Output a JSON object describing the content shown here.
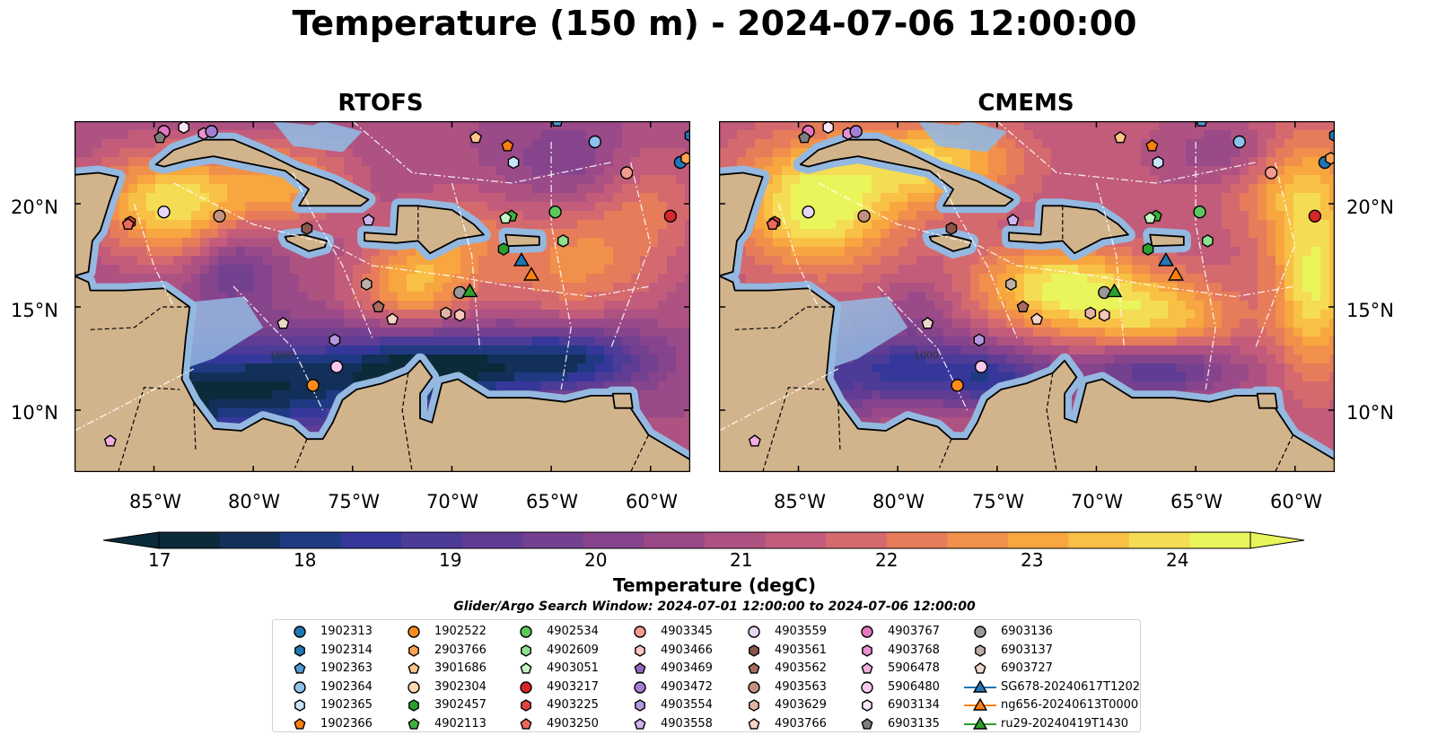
{
  "title": "Temperature (150 m) - 2024-07-06 12:00:00",
  "panels": [
    {
      "title": "RTOFS"
    },
    {
      "title": "CMEMS"
    }
  ],
  "map": {
    "lon_range": [
      -89,
      -58
    ],
    "lat_range": [
      7,
      24
    ],
    "lat_ticks": [
      "20°N",
      "15°N",
      "10°N"
    ],
    "lon_ticks": [
      "85°W",
      "80°W",
      "75°W",
      "70°W",
      "65°W",
      "60°W"
    ],
    "land_color": "#d2b48c",
    "shelf_color": "#94b8e0",
    "contour_labels": [
      "1000",
      "1000"
    ]
  },
  "colorbar": {
    "label": "Temperature (degC)",
    "ticks": [
      "17",
      "18",
      "19",
      "20",
      "21",
      "22",
      "23",
      "24"
    ],
    "range": [
      17,
      24.5
    ],
    "extend": "both",
    "colors": [
      "#0b2a3a",
      "#13305a",
      "#1f3a82",
      "#35389a",
      "#4d3b98",
      "#613c94",
      "#744090",
      "#86448c",
      "#9a4a88",
      "#ae5282",
      "#c25c7a",
      "#d56a6e",
      "#e67c5a",
      "#f1904a",
      "#f7a640",
      "#f9c046",
      "#f5dc55",
      "#e9f55a"
    ]
  },
  "search_window": "Glider/Argo Search Window: 2024-07-01 12:00:00 to 2024-07-06 12:00:00",
  "legend": [
    {
      "label": "1902313",
      "marker": "circle",
      "color": "#1f77b4"
    },
    {
      "label": "1902314",
      "marker": "hexagon",
      "color": "#1f77b4"
    },
    {
      "label": "1902363",
      "marker": "pentagon",
      "color": "#4e9bd6"
    },
    {
      "label": "1902364",
      "marker": "circle",
      "color": "#8cc2ec"
    },
    {
      "label": "1902365",
      "marker": "hexagon",
      "color": "#c8e4fa"
    },
    {
      "label": "1902366",
      "marker": "pentagon",
      "color": "#ff7f0e"
    },
    {
      "label": "1902522",
      "marker": "circle",
      "color": "#ff8c1a"
    },
    {
      "label": "2903766",
      "marker": "hexagon",
      "color": "#ffa351"
    },
    {
      "label": "3901686",
      "marker": "pentagon",
      "color": "#ffc48a"
    },
    {
      "label": "3902304",
      "marker": "circle",
      "color": "#ffd9b3"
    },
    {
      "label": "3902457",
      "marker": "hexagon",
      "color": "#2ca02c"
    },
    {
      "label": "4902113",
      "marker": "pentagon",
      "color": "#3fb13f"
    },
    {
      "label": "4902534",
      "marker": "circle",
      "color": "#5cc85c"
    },
    {
      "label": "4902609",
      "marker": "hexagon",
      "color": "#8fe08f"
    },
    {
      "label": "4903051",
      "marker": "pentagon",
      "color": "#c4f5c4"
    },
    {
      "label": "4903217",
      "marker": "circle",
      "color": "#d62728"
    },
    {
      "label": "4903225",
      "marker": "hexagon",
      "color": "#e0433f"
    },
    {
      "label": "4903250",
      "marker": "pentagon",
      "color": "#eb6a5c"
    },
    {
      "label": "4903345",
      "marker": "circle",
      "color": "#f39a8f"
    },
    {
      "label": "4903466",
      "marker": "hexagon",
      "color": "#fbc4bc"
    },
    {
      "label": "4903469",
      "marker": "pentagon",
      "color": "#9467bd"
    },
    {
      "label": "4903472",
      "marker": "circle",
      "color": "#a27fd0"
    },
    {
      "label": "4903554",
      "marker": "hexagon",
      "color": "#b597e0"
    },
    {
      "label": "4903558",
      "marker": "pentagon",
      "color": "#cdb4ee"
    },
    {
      "label": "4903559",
      "marker": "circle",
      "color": "#e6d6f8"
    },
    {
      "label": "4903561",
      "marker": "hexagon",
      "color": "#8c564b"
    },
    {
      "label": "4903562",
      "marker": "pentagon",
      "color": "#a86c5f"
    },
    {
      "label": "4903563",
      "marker": "circle",
      "color": "#c4907f"
    },
    {
      "label": "4903629",
      "marker": "hexagon",
      "color": "#e0b5a5"
    },
    {
      "label": "4903766",
      "marker": "pentagon",
      "color": "#f5d5c7"
    },
    {
      "label": "4903767",
      "marker": "circle",
      "color": "#e377c2"
    },
    {
      "label": "4903768",
      "marker": "hexagon",
      "color": "#ea8fd0"
    },
    {
      "label": "5906478",
      "marker": "pentagon",
      "color": "#f2aee0"
    },
    {
      "label": "5906480",
      "marker": "circle",
      "color": "#f8c9ec"
    },
    {
      "label": "6903134",
      "marker": "hexagon",
      "color": "#fde6f7"
    },
    {
      "label": "6903135",
      "marker": "pentagon",
      "color": "#7f7f7f"
    },
    {
      "label": "6903136",
      "marker": "circle",
      "color": "#999999"
    },
    {
      "label": "6903137",
      "marker": "hexagon",
      "color": "#c0b0a8"
    },
    {
      "label": "6903727",
      "marker": "pentagon",
      "color": "#eed8cc"
    },
    {
      "label": "SG678-20240617T1202",
      "marker": "triangle",
      "color": "#1f77b4"
    },
    {
      "label": "ng656-20240613T0000",
      "marker": "triangle",
      "color": "#ff7f0e"
    },
    {
      "label": "ru29-20240419T1430",
      "marker": "triangle",
      "color": "#2ca02c"
    }
  ],
  "platforms": [
    {
      "id": "1902313",
      "lon": -58.5,
      "lat": 22.0
    },
    {
      "id": "1902314",
      "lon": -58.0,
      "lat": 23.3
    },
    {
      "id": "1902363",
      "lon": -64.7,
      "lat": 24.0
    },
    {
      "id": "1902364",
      "lon": -62.8,
      "lat": 23.0
    },
    {
      "id": "1902365",
      "lon": -66.9,
      "lat": 22.0
    },
    {
      "id": "1902366",
      "lon": -67.2,
      "lat": 22.8
    },
    {
      "id": "2903766",
      "lon": -58.2,
      "lat": 22.2
    },
    {
      "id": "3901686",
      "lon": -68.8,
      "lat": 23.2
    },
    {
      "id": "1902522",
      "lon": -77.0,
      "lat": 11.2
    },
    {
      "id": "3902457",
      "lon": -67.4,
      "lat": 17.8
    },
    {
      "id": "4902113",
      "lon": -67.0,
      "lat": 19.4
    },
    {
      "id": "4903051",
      "lon": -67.3,
      "lat": 19.3
    },
    {
      "id": "4902534",
      "lon": -64.8,
      "lat": 19.6
    },
    {
      "id": "4902609",
      "lon": -64.4,
      "lat": 18.2
    },
    {
      "id": "4903217",
      "lon": -59.0,
      "lat": 19.4
    },
    {
      "id": "4903345",
      "lon": -61.2,
      "lat": 21.5
    },
    {
      "id": "4903466",
      "lon": -69.6,
      "lat": 14.6
    },
    {
      "id": "4903559",
      "lon": -84.5,
      "lat": 19.6
    },
    {
      "id": "4903558",
      "lon": -74.2,
      "lat": 19.2
    },
    {
      "id": "4903554",
      "lon": -75.9,
      "lat": 13.4
    },
    {
      "id": "4903561",
      "lon": -77.3,
      "lat": 18.8
    },
    {
      "id": "4903562",
      "lon": -73.7,
      "lat": 15.0
    },
    {
      "id": "4903563",
      "lon": -81.7,
      "lat": 19.4
    },
    {
      "id": "4903629",
      "lon": -70.3,
      "lat": 14.7
    },
    {
      "id": "4903766",
      "lon": -73.0,
      "lat": 14.4
    },
    {
      "id": "4903767",
      "lon": -84.5,
      "lat": 23.5
    },
    {
      "id": "4903768",
      "lon": -82.5,
      "lat": 23.4
    },
    {
      "id": "5906478",
      "lon": -87.2,
      "lat": 8.5
    },
    {
      "id": "5906480",
      "lon": -75.8,
      "lat": 12.1
    },
    {
      "id": "6903134",
      "lon": -83.5,
      "lat": 23.7
    },
    {
      "id": "6903135",
      "lon": -84.7,
      "lat": 23.2
    },
    {
      "id": "6903136",
      "lon": -69.6,
      "lat": 15.7
    },
    {
      "id": "6903137",
      "lon": -74.3,
      "lat": 16.1
    },
    {
      "id": "6903727",
      "lon": -78.5,
      "lat": 14.2
    },
    {
      "id": "4903225",
      "lon": -86.2,
      "lat": 19.1
    },
    {
      "id": "4903472",
      "lon": -82.1,
      "lat": 23.5
    },
    {
      "id": "4903250",
      "lon": -86.3,
      "lat": 19.0
    }
  ],
  "gliders": [
    {
      "id": "SG678-20240617T1202",
      "lon": -66.5,
      "lat": 17.2
    },
    {
      "id": "ng656-20240613T0000",
      "lon": -66.0,
      "lat": 16.5
    },
    {
      "id": "ru29-20240419T1430",
      "lon": -69.1,
      "lat": 15.7
    }
  ]
}
